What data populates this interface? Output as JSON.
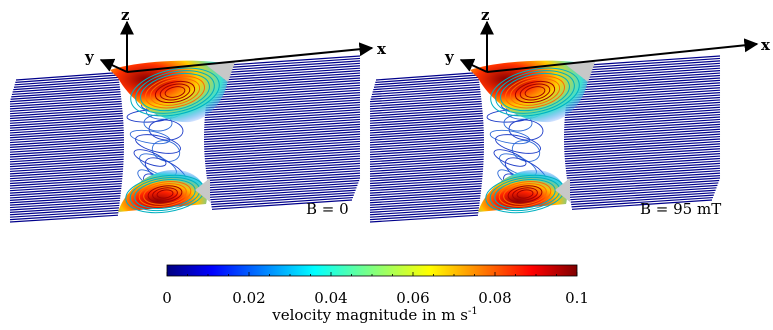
{
  "panels": [
    {
      "id": "left",
      "label": "B = 0",
      "axes": {
        "x": "x",
        "y": "y",
        "z": "z"
      }
    },
    {
      "id": "right",
      "label": "B = 95 mT",
      "axes": {
        "x": "x",
        "y": "y",
        "z": "z"
      }
    }
  ],
  "colorbar": {
    "title_text": "velocity magnitude in m s",
    "title_exp": "-1",
    "min": 0,
    "max": 0.1,
    "tick_labels": [
      "0",
      "0.02",
      "0.04",
      "0.06",
      "0.08",
      "0.1"
    ],
    "colors": [
      "#00007f",
      "#0000ff",
      "#00ffff",
      "#ffff00",
      "#ff0000",
      "#7f0000"
    ]
  },
  "colors": {
    "streamline": "#00008b",
    "axis": "#000000"
  }
}
